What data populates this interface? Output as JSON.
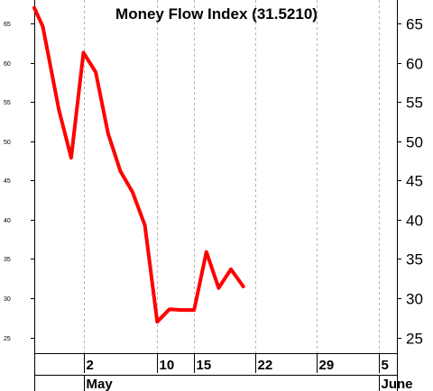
{
  "chart_data": {
    "type": "line",
    "title": "Money Flow Index (31.5210)",
    "ylim": [
      23,
      68
    ],
    "yticks": [
      25,
      30,
      35,
      40,
      45,
      50,
      55,
      60,
      65
    ],
    "x_ticks": [
      {
        "label": "2",
        "day": 4
      },
      {
        "label": "10",
        "day": 10
      },
      {
        "label": "15",
        "day": 13
      },
      {
        "label": "22",
        "day": 18
      },
      {
        "label": "29",
        "day": 23
      },
      {
        "label": "5",
        "day": 28
      }
    ],
    "month_labels": [
      {
        "label": "May",
        "day": 4
      },
      {
        "label": "June",
        "day": 28
      }
    ],
    "xlim": [
      0,
      29.5
    ],
    "grid": true,
    "series": [
      {
        "color": "#ff0000",
        "points": [
          {
            "day": 0,
            "value": 67.0
          },
          {
            "day": 0.7,
            "value": 64.6
          },
          {
            "day": 2,
            "value": 54.0
          },
          {
            "day": 3,
            "value": 47.9
          },
          {
            "day": 4,
            "value": 61.3
          },
          {
            "day": 5,
            "value": 58.8
          },
          {
            "day": 6,
            "value": 51.0
          },
          {
            "day": 7,
            "value": 46.2
          },
          {
            "day": 8,
            "value": 43.5
          },
          {
            "day": 9,
            "value": 39.3
          },
          {
            "day": 10,
            "value": 27.0
          },
          {
            "day": 11,
            "value": 28.6
          },
          {
            "day": 12,
            "value": 28.5
          },
          {
            "day": 13,
            "value": 28.5
          },
          {
            "day": 14,
            "value": 35.9
          },
          {
            "day": 15,
            "value": 31.3
          },
          {
            "day": 16,
            "value": 33.7
          },
          {
            "day": 17,
            "value": 31.5
          }
        ]
      }
    ]
  }
}
